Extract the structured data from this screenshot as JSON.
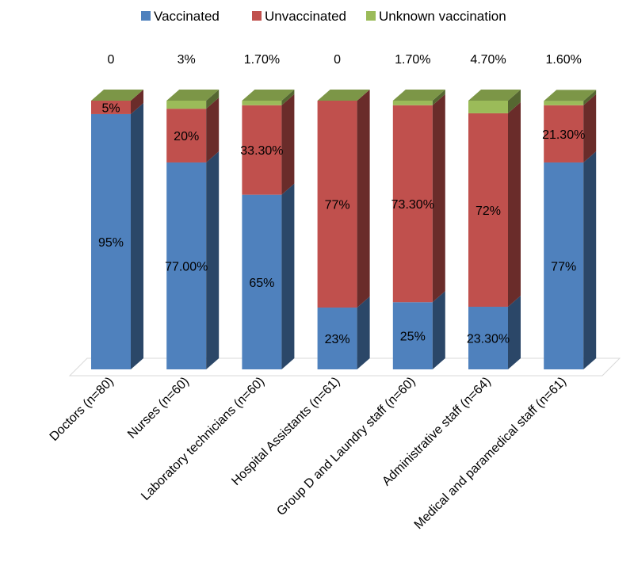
{
  "chart_data": {
    "type": "bar",
    "stacked": true,
    "three_d": true,
    "categories": [
      "Doctors (n=80)",
      "Nurses (n=60)",
      "Laboratory technicians (n=60)",
      "Hospital Assistants (n=61)",
      "Group D and Laundry staff (n=60)",
      "Administrative staff (n=64)",
      "Medical and paramedical staff (n=61)"
    ],
    "series": [
      {
        "name": "Vaccinated",
        "color": "#4F81BD",
        "values": [
          95,
          77,
          65,
          23,
          25,
          23.3,
          77
        ],
        "labels": [
          "95%",
          "77.00%",
          "65%",
          "23%",
          "25%",
          "23.30%",
          "77%"
        ]
      },
      {
        "name": "Unvaccinated",
        "color": "#C0504D",
        "values": [
          5,
          20,
          33.3,
          77,
          73.3,
          72,
          21.3
        ],
        "labels": [
          "5%",
          "20%",
          "33.30%",
          "77%",
          "73.30%",
          "72%",
          "21.30%"
        ]
      },
      {
        "name": "Unknown vaccination",
        "color": "#9BBB59",
        "values": [
          0,
          3,
          1.7,
          0,
          1.7,
          4.7,
          1.6
        ],
        "labels": [
          "0",
          "3%",
          "1.70%",
          "0",
          "1.70%",
          "4.70%",
          "1.60%"
        ]
      }
    ],
    "ylim": [
      0,
      100
    ],
    "grid": false,
    "legend": "top"
  }
}
